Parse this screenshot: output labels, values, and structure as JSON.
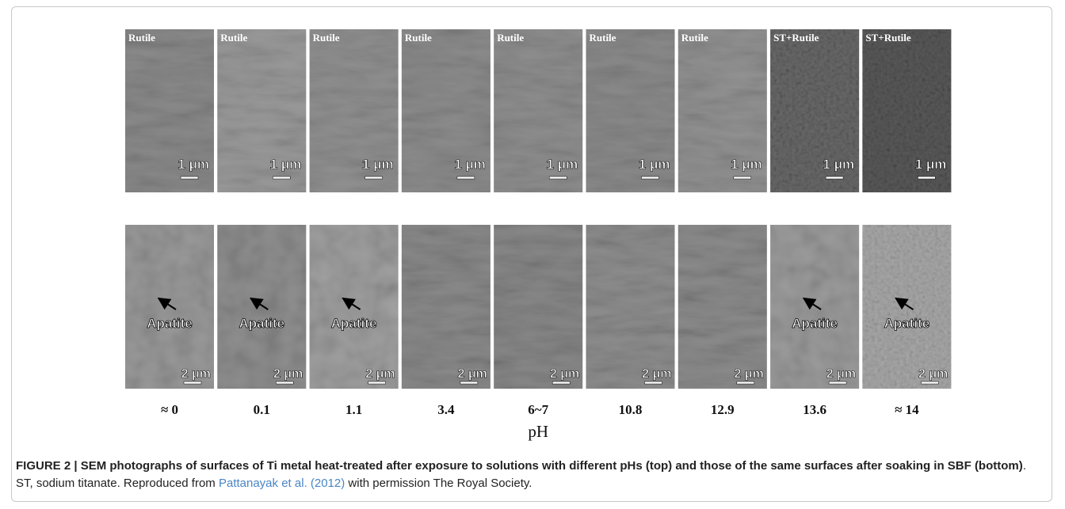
{
  "figure": {
    "top_panels": [
      {
        "label": "Rutile",
        "scale": "1 μm"
      },
      {
        "label": "Rutile",
        "scale": "1 μm"
      },
      {
        "label": "Rutile",
        "scale": "1 μm"
      },
      {
        "label": "Rutile",
        "scale": "1 μm"
      },
      {
        "label": "Rutile",
        "scale": "1 μm"
      },
      {
        "label": "Rutile",
        "scale": "1 μm"
      },
      {
        "label": "Rutile",
        "scale": "1 μm"
      },
      {
        "label": "ST+Rutile",
        "scale": "1 μm"
      },
      {
        "label": "ST+Rutile",
        "scale": "1 μm"
      }
    ],
    "bottom_panels": [
      {
        "annotation": "Apatite",
        "scale": "2 μm"
      },
      {
        "annotation": "Apatite",
        "scale": "2 μm"
      },
      {
        "annotation": "Apatite",
        "scale": "2 μm"
      },
      {
        "scale": "2 μm"
      },
      {
        "scale": "2 μm"
      },
      {
        "scale": "2 μm"
      },
      {
        "scale": "2 μm"
      },
      {
        "annotation": "Apatite",
        "scale": "2 μm"
      },
      {
        "annotation": "Apatite",
        "scale": "2 μm"
      }
    ],
    "ph_values": [
      "≈ 0",
      "0.1",
      "1.1",
      "3.4",
      "6~7",
      "10.8",
      "12.9",
      "13.6",
      "≈ 14"
    ],
    "axis_label": "pH"
  },
  "caption": {
    "bold": "FIGURE 2 | SEM photographs of surfaces of Ti metal heat-treated after exposure to solutions with different pHs (top) and those of the same surfaces after soaking in SBF (bottom)",
    "text1": ". ST, sodium titanate. Reproduced from ",
    "link": "Pattanayak et al. (2012)",
    "text2": " with permission The Royal Society."
  }
}
